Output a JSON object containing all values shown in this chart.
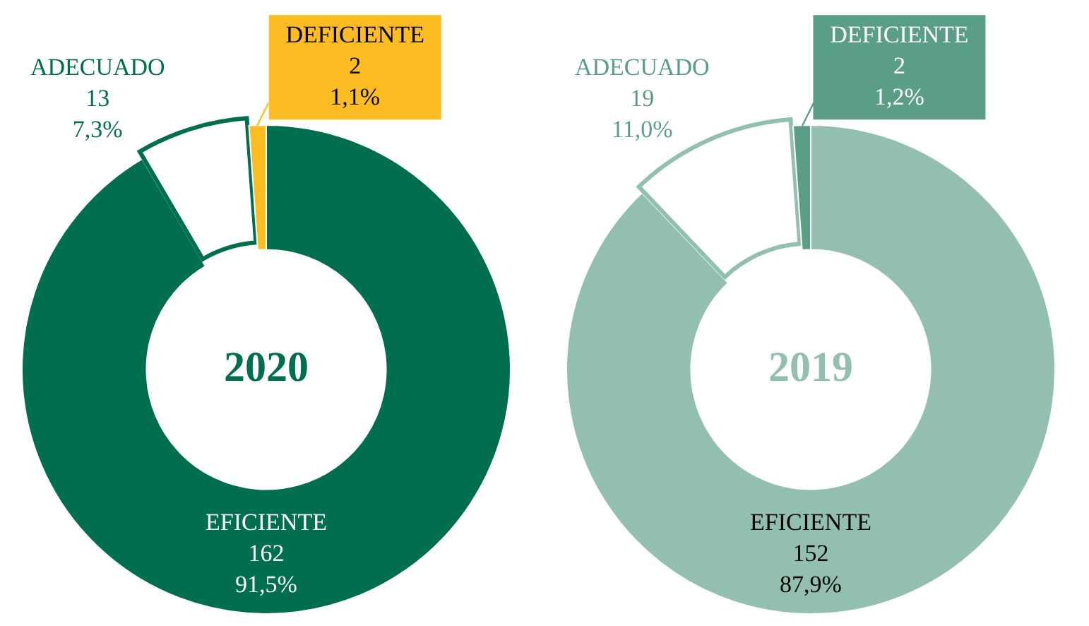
{
  "chart_data": [
    {
      "type": "donut",
      "title": "2020",
      "categories": [
        "EFICIENTE",
        "ADECUADO",
        "DEFICIENTE"
      ],
      "values": [
        162,
        13,
        2
      ],
      "colors": [
        "#006e4f",
        "#ffffff",
        "#fdbd22"
      ],
      "value_labels": [
        "162\n91,5%",
        "13\n7,3%",
        "2\n1,1%"
      ],
      "legend": false
    },
    {
      "type": "donut",
      "title": "2019",
      "categories": [
        "EFICIENTE",
        "ADECUADO",
        "DEFICIENTE"
      ],
      "values": [
        152,
        19,
        2
      ],
      "colors": [
        "#93bfae",
        "#ffffff",
        "#5a9e85"
      ],
      "value_labels": [
        "152\n87,9%",
        "19\n11,0%",
        "2\n1,2%"
      ],
      "legend": false
    }
  ]
}
